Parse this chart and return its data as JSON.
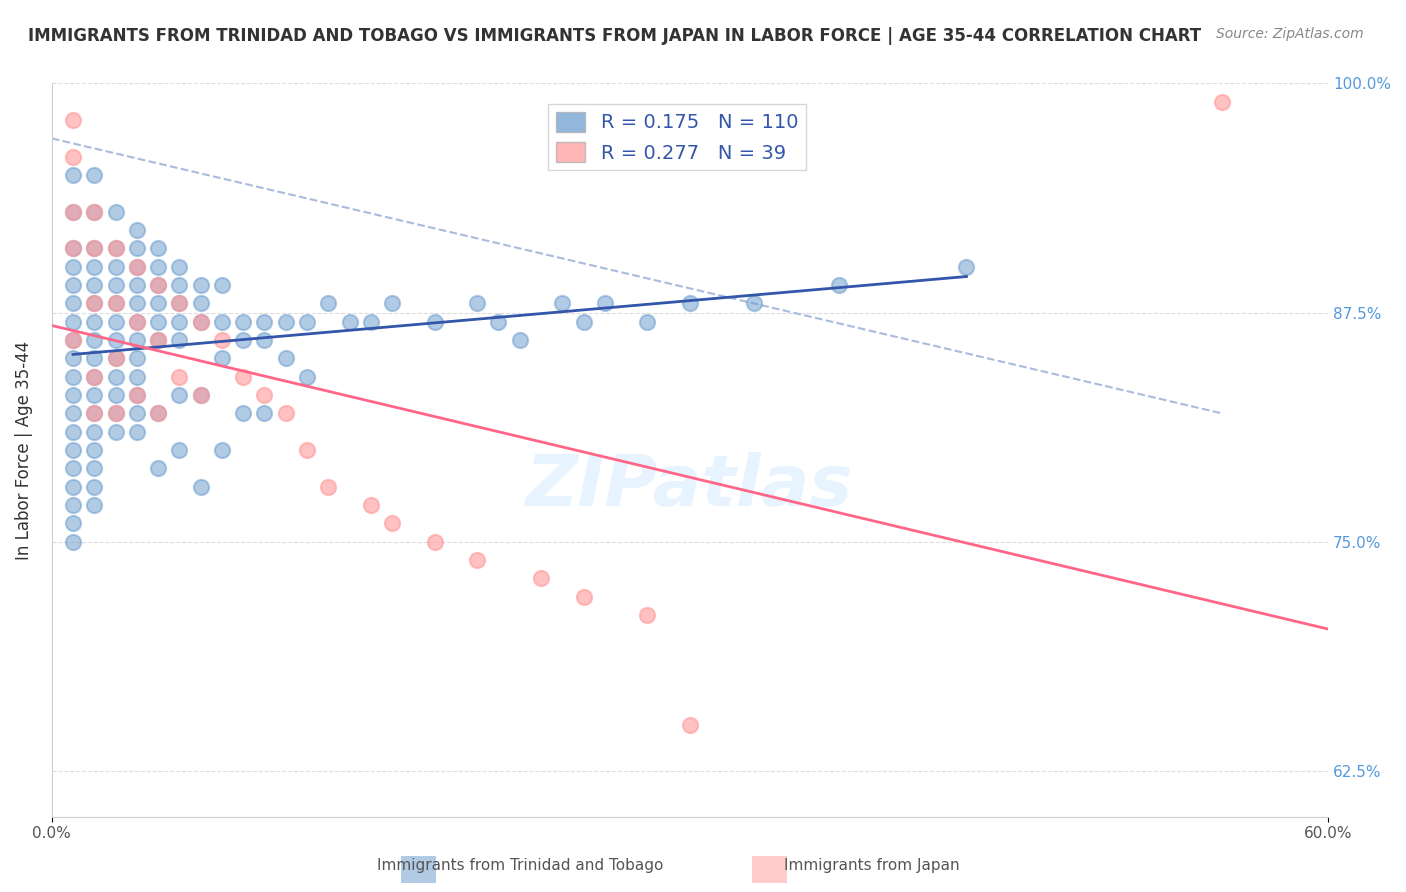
{
  "title": "IMMIGRANTS FROM TRINIDAD AND TOBAGO VS IMMIGRANTS FROM JAPAN IN LABOR FORCE | AGE 35-44 CORRELATION CHART",
  "source": "Source: ZipAtlas.com",
  "xlabel": "",
  "ylabel": "In Labor Force | Age 35-44",
  "xlim": [
    0.0,
    0.6
  ],
  "ylim": [
    0.6,
    1.0
  ],
  "xticks": [
    0.0,
    0.6
  ],
  "xticklabels": [
    "0.0%",
    "60.0%"
  ],
  "yticks": [
    0.625,
    0.75,
    0.875,
    1.0
  ],
  "yticklabels": [
    "62.5%",
    "75.0%",
    "87.5%",
    "100.0%"
  ],
  "blue_color": "#6699CC",
  "pink_color": "#FF9999",
  "blue_line_color": "#3355AA",
  "pink_line_color": "#FF6688",
  "dashed_line_color": "#AABBDD",
  "legend_R1": "0.175",
  "legend_N1": "110",
  "legend_R2": "0.277",
  "legend_N2": "39",
  "legend_label1": "Immigrants from Trinidad and Tobago",
  "legend_label2": "Immigrants from Japan",
  "watermark": "ZIPatlas",
  "blue_x": [
    0.01,
    0.01,
    0.01,
    0.01,
    0.01,
    0.01,
    0.01,
    0.01,
    0.01,
    0.01,
    0.01,
    0.01,
    0.01,
    0.01,
    0.01,
    0.01,
    0.01,
    0.01,
    0.01,
    0.02,
    0.02,
    0.02,
    0.02,
    0.02,
    0.02,
    0.02,
    0.02,
    0.02,
    0.02,
    0.02,
    0.02,
    0.02,
    0.02,
    0.02,
    0.02,
    0.02,
    0.03,
    0.03,
    0.03,
    0.03,
    0.03,
    0.03,
    0.03,
    0.03,
    0.03,
    0.03,
    0.03,
    0.03,
    0.04,
    0.04,
    0.04,
    0.04,
    0.04,
    0.04,
    0.04,
    0.04,
    0.04,
    0.04,
    0.04,
    0.04,
    0.05,
    0.05,
    0.05,
    0.05,
    0.05,
    0.05,
    0.05,
    0.05,
    0.06,
    0.06,
    0.06,
    0.06,
    0.06,
    0.06,
    0.06,
    0.07,
    0.07,
    0.07,
    0.07,
    0.07,
    0.08,
    0.08,
    0.08,
    0.08,
    0.09,
    0.09,
    0.09,
    0.1,
    0.1,
    0.1,
    0.11,
    0.11,
    0.12,
    0.12,
    0.13,
    0.14,
    0.15,
    0.16,
    0.18,
    0.2,
    0.21,
    0.22,
    0.24,
    0.25,
    0.26,
    0.28,
    0.3,
    0.33,
    0.37,
    0.43
  ],
  "blue_y": [
    0.95,
    0.93,
    0.91,
    0.9,
    0.89,
    0.88,
    0.87,
    0.86,
    0.85,
    0.84,
    0.83,
    0.82,
    0.81,
    0.8,
    0.79,
    0.78,
    0.77,
    0.76,
    0.75,
    0.95,
    0.93,
    0.91,
    0.9,
    0.89,
    0.88,
    0.87,
    0.86,
    0.85,
    0.84,
    0.83,
    0.82,
    0.81,
    0.8,
    0.79,
    0.78,
    0.77,
    0.93,
    0.91,
    0.9,
    0.89,
    0.88,
    0.87,
    0.86,
    0.85,
    0.84,
    0.83,
    0.82,
    0.81,
    0.92,
    0.91,
    0.9,
    0.89,
    0.88,
    0.87,
    0.86,
    0.85,
    0.84,
    0.83,
    0.82,
    0.81,
    0.91,
    0.9,
    0.89,
    0.88,
    0.87,
    0.86,
    0.82,
    0.79,
    0.9,
    0.89,
    0.88,
    0.87,
    0.86,
    0.83,
    0.8,
    0.89,
    0.88,
    0.87,
    0.83,
    0.78,
    0.89,
    0.87,
    0.85,
    0.8,
    0.87,
    0.86,
    0.82,
    0.87,
    0.86,
    0.82,
    0.87,
    0.85,
    0.87,
    0.84,
    0.88,
    0.87,
    0.87,
    0.88,
    0.87,
    0.88,
    0.87,
    0.86,
    0.88,
    0.87,
    0.88,
    0.87,
    0.88,
    0.88,
    0.89,
    0.9
  ],
  "pink_x": [
    0.01,
    0.01,
    0.01,
    0.01,
    0.01,
    0.02,
    0.02,
    0.02,
    0.02,
    0.02,
    0.03,
    0.03,
    0.03,
    0.03,
    0.04,
    0.04,
    0.04,
    0.05,
    0.05,
    0.05,
    0.06,
    0.06,
    0.07,
    0.07,
    0.08,
    0.09,
    0.1,
    0.11,
    0.12,
    0.13,
    0.15,
    0.16,
    0.18,
    0.2,
    0.23,
    0.25,
    0.28,
    0.3,
    0.55
  ],
  "pink_y": [
    0.98,
    0.96,
    0.93,
    0.91,
    0.86,
    0.93,
    0.91,
    0.88,
    0.84,
    0.82,
    0.91,
    0.88,
    0.85,
    0.82,
    0.9,
    0.87,
    0.83,
    0.89,
    0.86,
    0.82,
    0.88,
    0.84,
    0.87,
    0.83,
    0.86,
    0.84,
    0.83,
    0.82,
    0.8,
    0.78,
    0.77,
    0.76,
    0.75,
    0.74,
    0.73,
    0.72,
    0.71,
    0.65,
    0.99
  ]
}
